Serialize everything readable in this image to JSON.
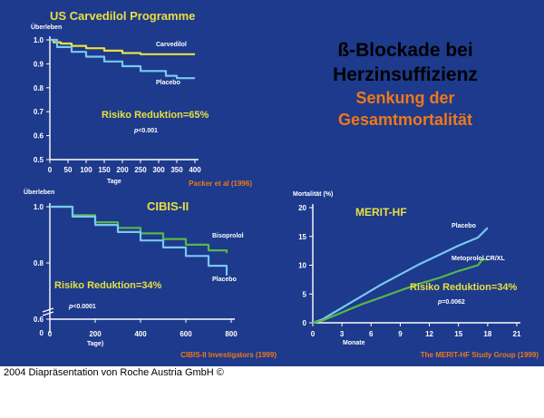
{
  "slide": {
    "headline_line1": "ß-Blockade bei",
    "headline_line2": "Herzinsuffizienz",
    "sub_line1": "Senkung der",
    "sub_line2": "Gesamtmortalität",
    "background": "#1d3a8c",
    "headline_color": "#000000",
    "sub_color": "#f07818"
  },
  "footer_credit": "2004 Diapräsentation von Roche Austria GmbH ©",
  "chart_data": [
    {
      "type": "line",
      "title": "US Carvedilol Programme",
      "ylabel": "Überleben",
      "xlabel": "Tage",
      "xlim": [
        0,
        400
      ],
      "ylim": [
        0.5,
        1.0
      ],
      "xticks": [
        0,
        50,
        100,
        150,
        200,
        250,
        300,
        350,
        400
      ],
      "yticks": [
        "0.5",
        "0.6",
        "0.7",
        "0.8",
        "0.9",
        "1.0"
      ],
      "annotation": "Risiko Reduktion=65%",
      "pvalue": "p<0.001",
      "source": "Packer et al (1996)",
      "series": [
        {
          "name": "Carvedilol",
          "color": "#e8e040",
          "x": [
            0,
            10,
            30,
            60,
            100,
            150,
            200,
            250,
            300,
            350,
            400
          ],
          "y": [
            1.0,
            0.99,
            0.985,
            0.975,
            0.965,
            0.955,
            0.945,
            0.94,
            0.94,
            0.94,
            0.94
          ]
        },
        {
          "name": "Placebo",
          "color": "#78c8f0",
          "x": [
            0,
            20,
            60,
            100,
            150,
            200,
            250,
            300,
            320,
            350,
            400
          ],
          "y": [
            1.0,
            0.97,
            0.95,
            0.93,
            0.91,
            0.89,
            0.87,
            0.87,
            0.85,
            0.84,
            0.84
          ]
        }
      ]
    },
    {
      "type": "line",
      "title": "CIBIS-II",
      "ylabel": "Überleben",
      "xlabel": "Tage)",
      "xlim": [
        0,
        800
      ],
      "ylim": [
        0.6,
        1.0
      ],
      "xticks": [
        0,
        200,
        400,
        600,
        800
      ],
      "yticks": [
        "0.6",
        "0.8",
        "1.0"
      ],
      "axis_zero_label": "0",
      "annotation": "Risiko Reduktion=34%",
      "pvalue": "p<0.0001",
      "source": "CIBIS-II Investigators (1999)",
      "series": [
        {
          "name": "Bisoprolol",
          "color": "#58b848",
          "x": [
            0,
            100,
            200,
            300,
            400,
            500,
            600,
            700,
            780
          ],
          "y": [
            1.0,
            0.97,
            0.945,
            0.925,
            0.905,
            0.885,
            0.865,
            0.845,
            0.835
          ]
        },
        {
          "name": "Placebo",
          "color": "#78c8f0",
          "x": [
            0,
            100,
            200,
            300,
            400,
            500,
            600,
            700,
            780
          ],
          "y": [
            1.0,
            0.965,
            0.935,
            0.91,
            0.88,
            0.855,
            0.825,
            0.79,
            0.755
          ]
        }
      ]
    },
    {
      "type": "line",
      "title": "MERIT-HF",
      "ylabel": "Mortalität (%)",
      "xlabel": "Monate",
      "xlim": [
        0,
        21
      ],
      "ylim": [
        0,
        20
      ],
      "xticks": [
        0,
        3,
        6,
        9,
        12,
        15,
        18,
        21
      ],
      "yticks": [
        "0",
        "5",
        "10",
        "15",
        "20"
      ],
      "annotation": "Risiko Reduktion=34%",
      "pvalue": "p=0.0062",
      "source": "The MERIT-HF Study Group (1999)",
      "series": [
        {
          "name": "Placebo",
          "color": "#78c8f0",
          "x": [
            0,
            1,
            3,
            5,
            7,
            9,
            11,
            13,
            15,
            17,
            18
          ],
          "y": [
            0,
            0.6,
            2.6,
            4.6,
            6.6,
            8.4,
            10.2,
            11.8,
            13.4,
            14.8,
            16.5
          ]
        },
        {
          "name": "Metoprolol CR/XL",
          "color": "#58b848",
          "x": [
            0,
            1,
            3,
            5,
            7,
            9,
            11,
            13,
            15,
            17,
            17.5,
            18
          ],
          "y": [
            0,
            0.4,
            1.8,
            3.2,
            4.4,
            5.6,
            6.8,
            7.8,
            9.0,
            10.0,
            11.0,
            11.0
          ]
        }
      ]
    }
  ]
}
